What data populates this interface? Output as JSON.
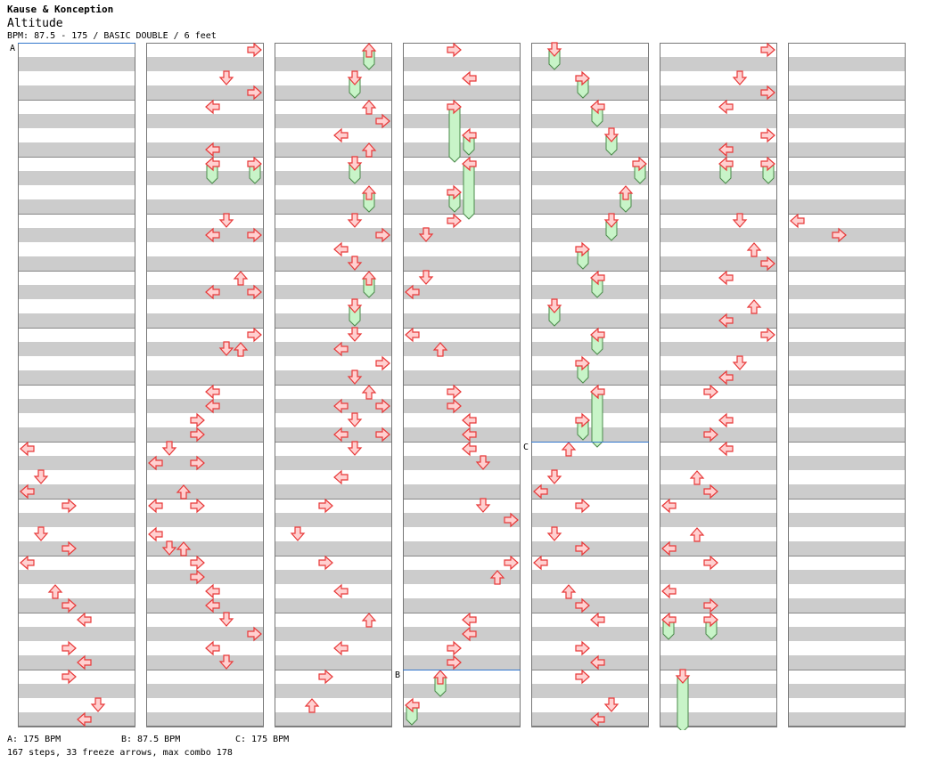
{
  "header": {
    "artist": "Kause & Konception",
    "title": "Altitude",
    "info": "BPM: 87.5 - 175 / BASIC DOUBLE / 6 feet"
  },
  "footer": {
    "bpm_labels": [
      {
        "label": "A: 175 BPM"
      },
      {
        "label": "B: 87.5 BPM"
      },
      {
        "label": "C: 175 BPM"
      }
    ],
    "stats": "167 steps, 33 freeze arrows, max combo 178"
  },
  "chart": {
    "markers": [
      {
        "letter": "A",
        "column": 0,
        "beat": 0
      },
      {
        "letter": "B",
        "column": 3,
        "beat": 44
      },
      {
        "letter": "C",
        "column": 4,
        "beat": 28
      }
    ],
    "colors": {
      "stripe": "#cccccc",
      "arrow_fill": "#ffd0d0",
      "arrow_stroke": "#e83838",
      "freeze_fill": "#c8f4c8",
      "freeze_stroke": "#4a8a4a",
      "bpm_line": "#3377cc"
    },
    "columns": [
      {
        "notes": [
          {
            "b": 28,
            "p": 0
          },
          {
            "b": 30,
            "p": 1
          },
          {
            "b": 31,
            "p": 0
          },
          {
            "b": 32,
            "p": 3
          },
          {
            "b": 34,
            "p": 1
          },
          {
            "b": 35,
            "p": 3
          },
          {
            "b": 36,
            "p": 0
          },
          {
            "b": 38,
            "p": 2
          },
          {
            "b": 39,
            "p": 3
          },
          {
            "b": 40,
            "p": 4
          },
          {
            "b": 42,
            "p": 3
          },
          {
            "b": 43,
            "p": 4
          },
          {
            "b": 44,
            "p": 3
          },
          {
            "b": 46,
            "p": 5
          },
          {
            "b": 47,
            "p": 4
          }
        ]
      },
      {
        "notes": [
          {
            "b": 0,
            "p": 7
          },
          {
            "b": 2,
            "p": 5
          },
          {
            "b": 3,
            "p": 7
          },
          {
            "b": 4,
            "p": 4
          },
          {
            "b": 7,
            "p": 4
          },
          {
            "b": 8,
            "p": 4,
            "f": 1
          },
          {
            "b": 8,
            "p": 7,
            "f": 1
          },
          {
            "b": 12,
            "p": 5
          },
          {
            "b": 13,
            "p": 4
          },
          {
            "b": 13,
            "p": 7
          },
          {
            "b": 16,
            "p": 6
          },
          {
            "b": 17,
            "p": 4
          },
          {
            "b": 17,
            "p": 7
          },
          {
            "b": 20,
            "p": 7
          },
          {
            "b": 21,
            "p": 5
          },
          {
            "b": 21,
            "p": 6
          },
          {
            "b": 24,
            "p": 4
          },
          {
            "b": 25,
            "p": 4
          },
          {
            "b": 26,
            "p": 3
          },
          {
            "b": 27,
            "p": 3
          },
          {
            "b": 28,
            "p": 1
          },
          {
            "b": 29,
            "p": 0
          },
          {
            "b": 29,
            "p": 3
          },
          {
            "b": 31,
            "p": 2
          },
          {
            "b": 32,
            "p": 0
          },
          {
            "b": 32,
            "p": 3
          },
          {
            "b": 34,
            "p": 0
          },
          {
            "b": 35,
            "p": 1
          },
          {
            "b": 35,
            "p": 2
          },
          {
            "b": 36,
            "p": 3
          },
          {
            "b": 37,
            "p": 3
          },
          {
            "b": 38,
            "p": 4
          },
          {
            "b": 39,
            "p": 4
          },
          {
            "b": 40,
            "p": 5
          },
          {
            "b": 41,
            "p": 7
          },
          {
            "b": 42,
            "p": 4
          },
          {
            "b": 43,
            "p": 5
          }
        ]
      },
      {
        "notes": [
          {
            "b": 0,
            "p": 6,
            "f": 1
          },
          {
            "b": 2,
            "p": 5,
            "f": 1
          },
          {
            "b": 4,
            "p": 6
          },
          {
            "b": 5,
            "p": 7
          },
          {
            "b": 6,
            "p": 4
          },
          {
            "b": 7,
            "p": 6
          },
          {
            "b": 8,
            "p": 5,
            "f": 1
          },
          {
            "b": 10,
            "p": 6,
            "f": 1
          },
          {
            "b": 12,
            "p": 5
          },
          {
            "b": 13,
            "p": 7
          },
          {
            "b": 14,
            "p": 4
          },
          {
            "b": 15,
            "p": 5
          },
          {
            "b": 16,
            "p": 6,
            "f": 1
          },
          {
            "b": 18,
            "p": 5,
            "f": 1
          },
          {
            "b": 20,
            "p": 5
          },
          {
            "b": 21,
            "p": 4
          },
          {
            "b": 22,
            "p": 7
          },
          {
            "b": 23,
            "p": 5
          },
          {
            "b": 24,
            "p": 6
          },
          {
            "b": 25,
            "p": 4
          },
          {
            "b": 25,
            "p": 7
          },
          {
            "b": 26,
            "p": 5
          },
          {
            "b": 27,
            "p": 4
          },
          {
            "b": 27,
            "p": 7
          },
          {
            "b": 28,
            "p": 5
          },
          {
            "b": 30,
            "p": 4
          },
          {
            "b": 32,
            "p": 3
          },
          {
            "b": 34,
            "p": 1
          },
          {
            "b": 36,
            "p": 3
          },
          {
            "b": 38,
            "p": 4
          },
          {
            "b": 40,
            "p": 6
          },
          {
            "b": 42,
            "p": 4
          },
          {
            "b": 44,
            "p": 3
          },
          {
            "b": 46,
            "p": 2
          }
        ]
      },
      {
        "notes": [
          {
            "b": 0,
            "p": 3
          },
          {
            "b": 2,
            "p": 4
          },
          {
            "b": 4,
            "p": 3,
            "f": 3.5
          },
          {
            "b": 6,
            "p": 4,
            "f": 1
          },
          {
            "b": 8,
            "p": 4,
            "f": 3.5
          },
          {
            "b": 10,
            "p": 3,
            "f": 1
          },
          {
            "b": 12,
            "p": 3
          },
          {
            "b": 13,
            "p": 1
          },
          {
            "b": 16,
            "p": 1
          },
          {
            "b": 17,
            "p": 0
          },
          {
            "b": 20,
            "p": 0
          },
          {
            "b": 21,
            "p": 2
          },
          {
            "b": 24,
            "p": 3
          },
          {
            "b": 25,
            "p": 3
          },
          {
            "b": 26,
            "p": 4
          },
          {
            "b": 27,
            "p": 4
          },
          {
            "b": 28,
            "p": 4
          },
          {
            "b": 29,
            "p": 5
          },
          {
            "b": 32,
            "p": 5
          },
          {
            "b": 33,
            "p": 7
          },
          {
            "b": 36,
            "p": 7
          },
          {
            "b": 37,
            "p": 6
          },
          {
            "b": 40,
            "p": 4
          },
          {
            "b": 41,
            "p": 4
          },
          {
            "b": 42,
            "p": 3
          },
          {
            "b": 43,
            "p": 3
          },
          {
            "b": 44,
            "p": 2,
            "f": 1
          },
          {
            "b": 46,
            "p": 0,
            "f": 1
          }
        ]
      },
      {
        "notes": [
          {
            "b": 0,
            "p": 1,
            "f": 1
          },
          {
            "b": 2,
            "p": 3,
            "f": 1
          },
          {
            "b": 4,
            "p": 4,
            "f": 1
          },
          {
            "b": 6,
            "p": 5,
            "f": 1
          },
          {
            "b": 8,
            "p": 7,
            "f": 1
          },
          {
            "b": 10,
            "p": 6,
            "f": 1
          },
          {
            "b": 12,
            "p": 5,
            "f": 1
          },
          {
            "b": 14,
            "p": 3,
            "f": 1
          },
          {
            "b": 16,
            "p": 4,
            "f": 1
          },
          {
            "b": 18,
            "p": 1,
            "f": 1
          },
          {
            "b": 20,
            "p": 4,
            "f": 1
          },
          {
            "b": 22,
            "p": 3,
            "f": 1
          },
          {
            "b": 24,
            "p": 4,
            "f": 3.5
          },
          {
            "b": 26,
            "p": 3,
            "f": 1
          },
          {
            "b": 28,
            "p": 2
          },
          {
            "b": 30,
            "p": 1
          },
          {
            "b": 31,
            "p": 0
          },
          {
            "b": 32,
            "p": 3
          },
          {
            "b": 34,
            "p": 1
          },
          {
            "b": 35,
            "p": 3
          },
          {
            "b": 36,
            "p": 0
          },
          {
            "b": 38,
            "p": 2
          },
          {
            "b": 39,
            "p": 3
          },
          {
            "b": 40,
            "p": 4
          },
          {
            "b": 42,
            "p": 3
          },
          {
            "b": 43,
            "p": 4
          },
          {
            "b": 44,
            "p": 3
          },
          {
            "b": 46,
            "p": 5
          },
          {
            "b": 47,
            "p": 4
          }
        ]
      },
      {
        "notes": [
          {
            "b": 0,
            "p": 7
          },
          {
            "b": 2,
            "p": 5
          },
          {
            "b": 3,
            "p": 7
          },
          {
            "b": 4,
            "p": 4
          },
          {
            "b": 6,
            "p": 7
          },
          {
            "b": 7,
            "p": 4
          },
          {
            "b": 8,
            "p": 4,
            "f": 1
          },
          {
            "b": 8,
            "p": 7,
            "f": 1
          },
          {
            "b": 12,
            "p": 5
          },
          {
            "b": 14,
            "p": 6
          },
          {
            "b": 15,
            "p": 7
          },
          {
            "b": 16,
            "p": 4
          },
          {
            "b": 18,
            "p": 6
          },
          {
            "b": 19,
            "p": 4
          },
          {
            "b": 20,
            "p": 7
          },
          {
            "b": 22,
            "p": 5
          },
          {
            "b": 23,
            "p": 4
          },
          {
            "b": 24,
            "p": 3
          },
          {
            "b": 26,
            "p": 4
          },
          {
            "b": 27,
            "p": 3
          },
          {
            "b": 28,
            "p": 4
          },
          {
            "b": 30,
            "p": 2
          },
          {
            "b": 31,
            "p": 3
          },
          {
            "b": 32,
            "p": 0
          },
          {
            "b": 34,
            "p": 2
          },
          {
            "b": 35,
            "p": 0
          },
          {
            "b": 36,
            "p": 3
          },
          {
            "b": 38,
            "p": 0
          },
          {
            "b": 39,
            "p": 3
          },
          {
            "b": 40,
            "p": 0,
            "f": 1
          },
          {
            "b": 40,
            "p": 3,
            "f": 1
          },
          {
            "b": 44,
            "p": 1,
            "f": 3.5
          }
        ]
      },
      {
        "notes": [
          {
            "b": 12,
            "p": 0
          },
          {
            "b": 13,
            "p": 3
          }
        ]
      }
    ]
  }
}
